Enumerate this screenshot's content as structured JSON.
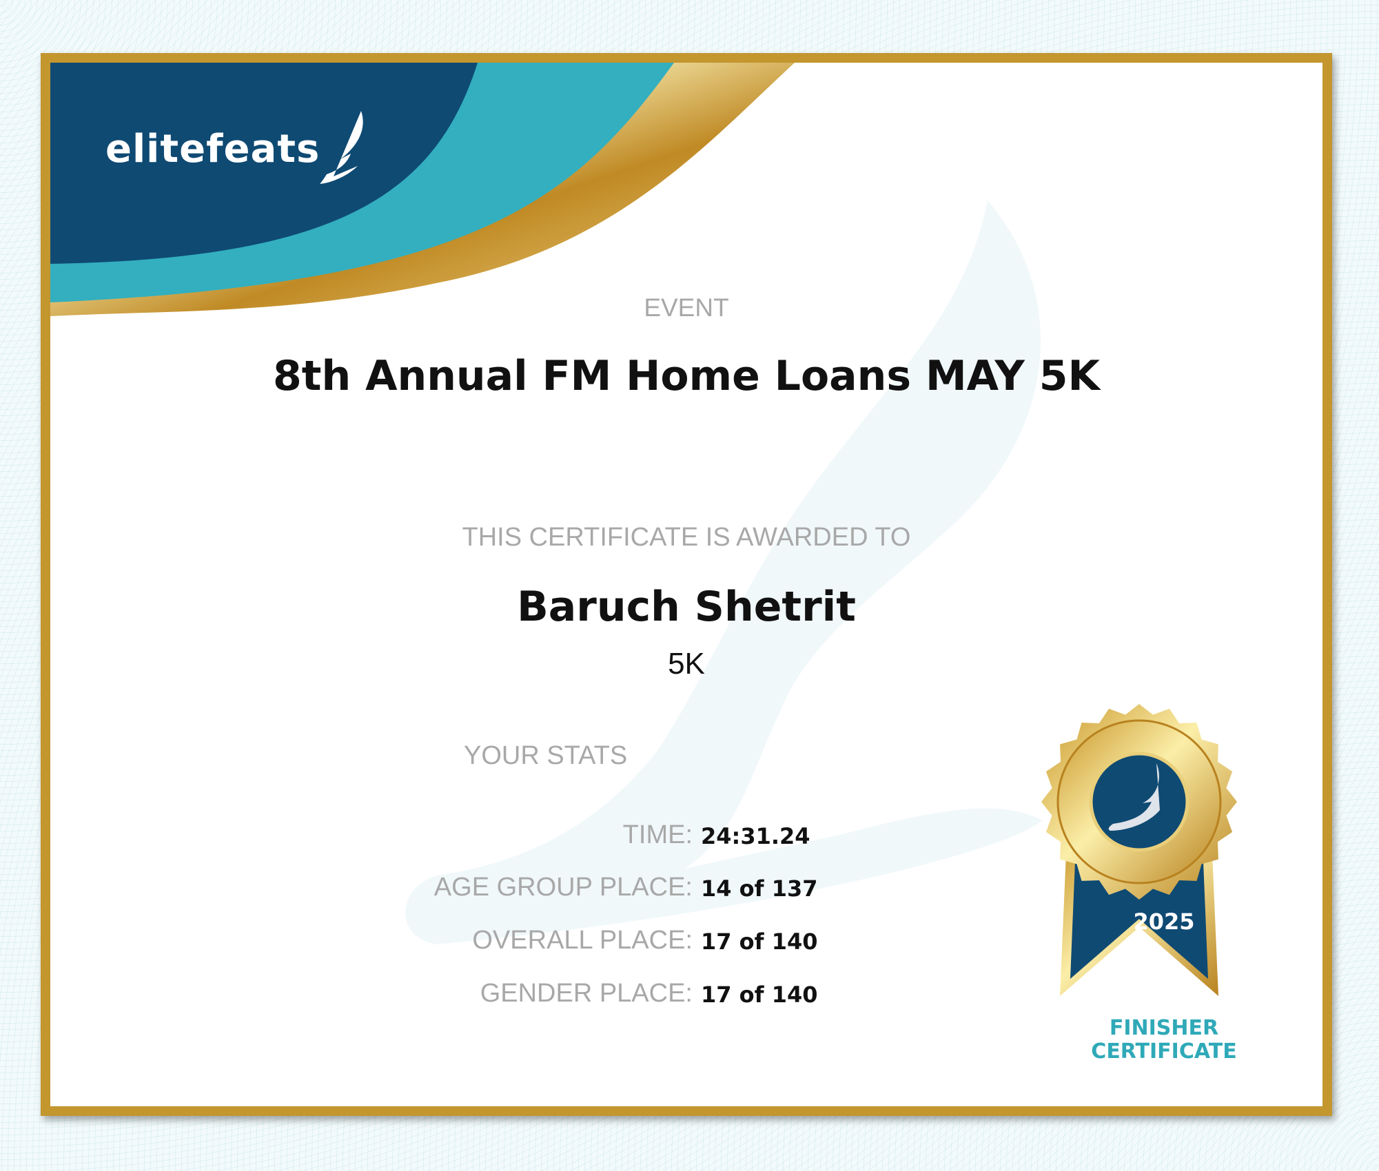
{
  "brand": {
    "logo_text": "elitefeats",
    "colors": {
      "navy": "#0f4a73",
      "teal": "#33afbf",
      "gold": "#c3962e"
    }
  },
  "event": {
    "label": "EVENT",
    "title": "8th Annual FM Home Loans MAY 5K"
  },
  "award": {
    "label": "THIS CERTIFICATE IS AWARDED TO",
    "name": "Baruch Shetrit",
    "distance": "5K"
  },
  "stats": {
    "title": "YOUR STATS",
    "rows": [
      {
        "label": "TIME:",
        "value": "24:31.24"
      },
      {
        "label": "AGE GROUP PLACE:",
        "value": "14 of 137"
      },
      {
        "label": "OVERALL PLACE:",
        "value": "17 of 140"
      },
      {
        "label": "GENDER PLACE:",
        "value": "17 of 140"
      }
    ]
  },
  "badge": {
    "year": "2025",
    "line1": "FINISHER",
    "line2": "CERTIFICATE",
    "icon": "winged-foot-icon"
  }
}
